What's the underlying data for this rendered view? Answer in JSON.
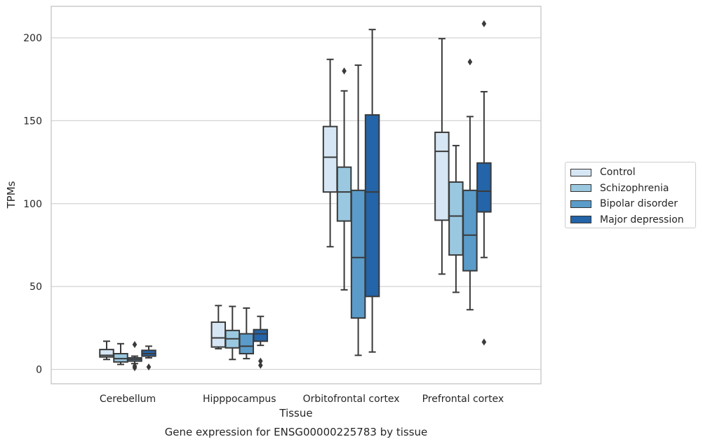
{
  "chart_data": {
    "type": "box",
    "title": "Gene expression for ENSG00000225783 by tissue",
    "xlabel": "Tissue",
    "ylabel": "TPMs",
    "ylim": [
      -9,
      219
    ],
    "yticks": [
      0,
      50,
      100,
      150,
      200
    ],
    "ytick_labels": [
      "0",
      "50",
      "100",
      "150",
      "200"
    ],
    "grid": "horizontal",
    "legend_position": "right",
    "categories": [
      "Cerebellum",
      "Hipppocampus",
      "Orbitofrontal cortex",
      "Prefrontal cortex"
    ],
    "series": [
      {
        "name": "Control",
        "color": "#d7e6f4",
        "boxes": [
          {
            "whisker_low": 6,
            "q1": 7.5,
            "median": 8.5,
            "q3": 12,
            "whisker_high": 17,
            "outliers": []
          },
          {
            "whisker_low": 12.5,
            "q1": 13.5,
            "median": 19,
            "q3": 28.5,
            "whisker_high": 38.5,
            "outliers": []
          },
          {
            "whisker_low": 74,
            "q1": 107,
            "median": 128,
            "q3": 146.5,
            "whisker_high": 187,
            "outliers": []
          },
          {
            "whisker_low": 57.5,
            "q1": 90,
            "median": 131.5,
            "q3": 143,
            "whisker_high": 199.5,
            "outliers": []
          }
        ]
      },
      {
        "name": "Schizophrenia",
        "color": "#9ac8e0",
        "boxes": [
          {
            "whisker_low": 3,
            "q1": 4.5,
            "median": 6.5,
            "q3": 9.5,
            "whisker_high": 15.5,
            "outliers": []
          },
          {
            "whisker_low": 6,
            "q1": 13,
            "median": 18.5,
            "q3": 23.5,
            "whisker_high": 38,
            "outliers": []
          },
          {
            "whisker_low": 48,
            "q1": 89.5,
            "median": 107,
            "q3": 122,
            "whisker_high": 168,
            "outliers": [
              180
            ]
          },
          {
            "whisker_low": 46.5,
            "q1": 69,
            "median": 92.5,
            "q3": 113,
            "whisker_high": 135,
            "outliers": []
          }
        ]
      },
      {
        "name": "Bipolar disorder",
        "color": "#5a9bc9",
        "boxes": [
          {
            "whisker_low": 3.5,
            "q1": 5,
            "median": 6,
            "q3": 7,
            "whisker_high": 8,
            "outliers": [
              15,
              2,
              1
            ]
          },
          {
            "whisker_low": 6.5,
            "q1": 9.5,
            "median": 14,
            "q3": 21.5,
            "whisker_high": 37,
            "outliers": []
          },
          {
            "whisker_low": 8.5,
            "q1": 31,
            "median": 67.5,
            "q3": 108,
            "whisker_high": 183.5,
            "outliers": []
          },
          {
            "whisker_low": 36,
            "q1": 59.5,
            "median": 81,
            "q3": 108,
            "whisker_high": 152.5,
            "outliers": [
              185.5
            ]
          }
        ]
      },
      {
        "name": "Major depression",
        "color": "#2464a8",
        "boxes": [
          {
            "whisker_low": 7,
            "q1": 8,
            "median": 9.5,
            "q3": 11.5,
            "whisker_high": 14,
            "outliers": [
              1.5
            ]
          },
          {
            "whisker_low": 14.5,
            "q1": 17,
            "median": 21.5,
            "q3": 24,
            "whisker_high": 32,
            "outliers": [
              5,
              2.5
            ]
          },
          {
            "whisker_low": 10.5,
            "q1": 44,
            "median": 107,
            "q3": 153.5,
            "whisker_high": 205,
            "outliers": []
          },
          {
            "whisker_low": 67.5,
            "q1": 95,
            "median": 107.5,
            "q3": 124.5,
            "whisker_high": 167.5,
            "outliers": [
              208.5,
              16.5
            ]
          }
        ]
      }
    ]
  }
}
